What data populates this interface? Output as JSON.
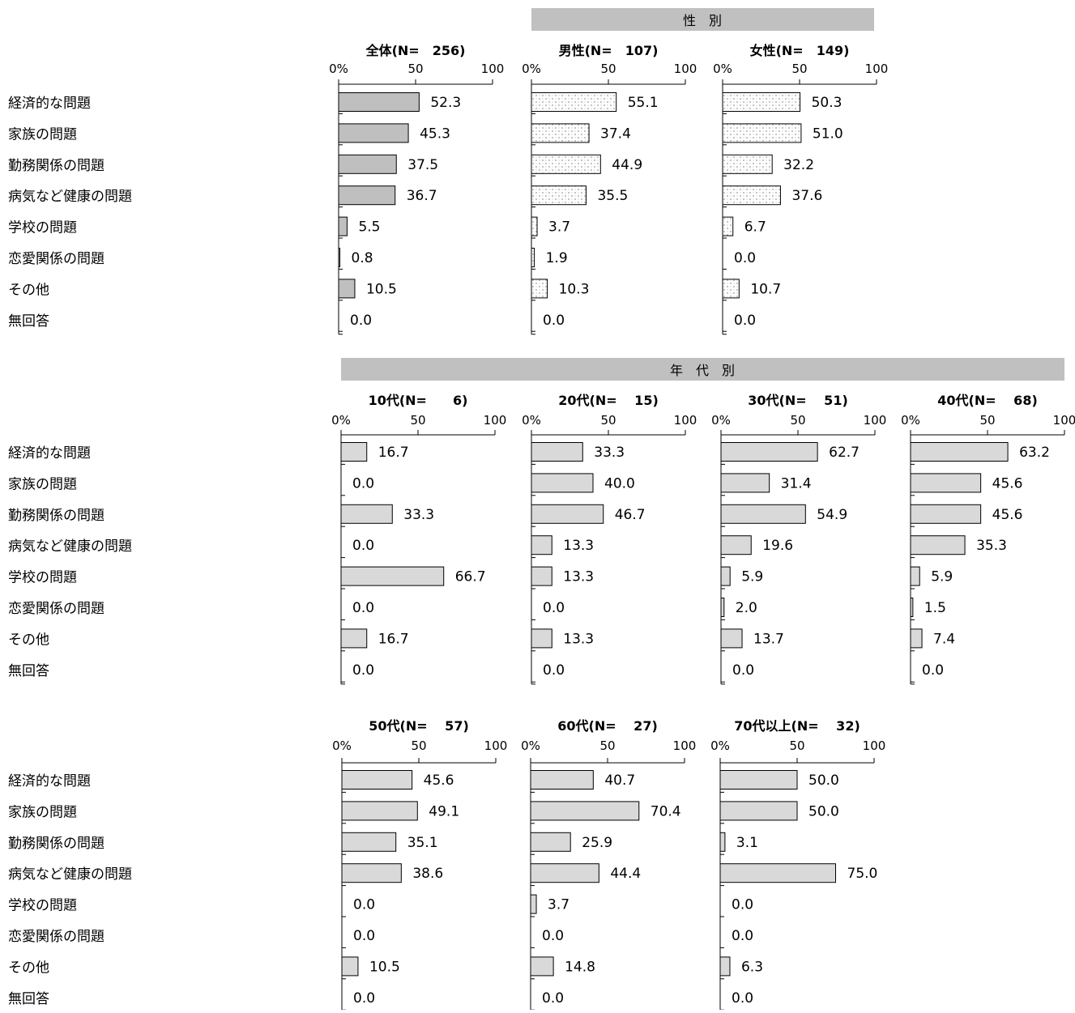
{
  "categories": [
    "経済的な問題",
    "家族の問題",
    "勤務関係の問題",
    "病気など健康の問題",
    "学校の問題",
    "恋愛関係の問題",
    "その他",
    "無回答"
  ],
  "group_headers": {
    "gender": "性　別",
    "age": "年　代　別"
  },
  "axis_ticks": [
    "0%",
    "50",
    "100"
  ],
  "colors": {
    "bar_total": "#bfbfbf",
    "bar_age": "#d9d9d9",
    "bar_border": "#000000",
    "header_bg": "#c0c0c0",
    "pattern_dot": "#999999"
  },
  "chart_data": [
    {
      "type": "bar",
      "orientation": "horizontal",
      "title": "全体(N=　256)",
      "style": "solid-gray",
      "xlim": [
        0,
        100
      ],
      "categories": [
        "経済的な問題",
        "家族の問題",
        "勤務関係の問題",
        "病気など健康の問題",
        "学校の問題",
        "恋愛関係の問題",
        "その他",
        "無回答"
      ],
      "values": [
        52.3,
        45.3,
        37.5,
        36.7,
        5.5,
        0.8,
        10.5,
        0.0
      ],
      "labels": [
        "52.3",
        "45.3",
        "37.5",
        "36.7",
        "5.5",
        "0.8",
        "10.5",
        "0.0"
      ]
    },
    {
      "type": "bar",
      "orientation": "horizontal",
      "title": "男性(N=　107)",
      "style": "dotted-pattern",
      "xlim": [
        0,
        100
      ],
      "categories": [
        "経済的な問題",
        "家族の問題",
        "勤務関係の問題",
        "病気など健康の問題",
        "学校の問題",
        "恋愛関係の問題",
        "その他",
        "無回答"
      ],
      "values": [
        55.1,
        37.4,
        44.9,
        35.5,
        3.7,
        1.9,
        10.3,
        0.0
      ],
      "labels": [
        "55.1",
        "37.4",
        "44.9",
        "35.5",
        "3.7",
        "1.9",
        "10.3",
        "0.0"
      ]
    },
    {
      "type": "bar",
      "orientation": "horizontal",
      "title": "女性(N=　149)",
      "style": "dotted-pattern",
      "xlim": [
        0,
        100
      ],
      "categories": [
        "経済的な問題",
        "家族の問題",
        "勤務関係の問題",
        "病気など健康の問題",
        "学校の問題",
        "恋愛関係の問題",
        "その他",
        "無回答"
      ],
      "values": [
        50.3,
        51.0,
        32.2,
        37.6,
        6.7,
        0.0,
        10.7,
        0.0
      ],
      "labels": [
        "50.3",
        "51.0",
        "32.2",
        "37.6",
        "6.7",
        "0.0",
        "10.7",
        "0.0"
      ]
    },
    {
      "type": "bar",
      "orientation": "horizontal",
      "title": "10代(N=　　6)",
      "style": "light-gray",
      "xlim": [
        0,
        100
      ],
      "categories": [
        "経済的な問題",
        "家族の問題",
        "勤務関係の問題",
        "病気など健康の問題",
        "学校の問題",
        "恋愛関係の問題",
        "その他",
        "無回答"
      ],
      "values": [
        16.7,
        0.0,
        33.3,
        0.0,
        66.7,
        0.0,
        16.7,
        0.0
      ],
      "labels": [
        "16.7",
        "0.0",
        "33.3",
        "0.0",
        "66.7",
        "0.0",
        "16.7",
        "0.0"
      ]
    },
    {
      "type": "bar",
      "orientation": "horizontal",
      "title": "20代(N=　 15)",
      "style": "light-gray",
      "xlim": [
        0,
        100
      ],
      "categories": [
        "経済的な問題",
        "家族の問題",
        "勤務関係の問題",
        "病気など健康の問題",
        "学校の問題",
        "恋愛関係の問題",
        "その他",
        "無回答"
      ],
      "values": [
        33.3,
        40.0,
        46.7,
        13.3,
        13.3,
        0.0,
        13.3,
        0.0
      ],
      "labels": [
        "33.3",
        "40.0",
        "46.7",
        "13.3",
        "13.3",
        "0.0",
        "13.3",
        "0.0"
      ]
    },
    {
      "type": "bar",
      "orientation": "horizontal",
      "title": "30代(N=　 51)",
      "style": "light-gray",
      "xlim": [
        0,
        100
      ],
      "categories": [
        "経済的な問題",
        "家族の問題",
        "勤務関係の問題",
        "病気など健康の問題",
        "学校の問題",
        "恋愛関係の問題",
        "その他",
        "無回答"
      ],
      "values": [
        62.7,
        31.4,
        54.9,
        19.6,
        5.9,
        2.0,
        13.7,
        0.0
      ],
      "labels": [
        "62.7",
        "31.4",
        "54.9",
        "19.6",
        "5.9",
        "2.0",
        "13.7",
        "0.0"
      ]
    },
    {
      "type": "bar",
      "orientation": "horizontal",
      "title": "40代(N=　 68)",
      "style": "light-gray",
      "xlim": [
        0,
        100
      ],
      "categories": [
        "経済的な問題",
        "家族の問題",
        "勤務関係の問題",
        "病気など健康の問題",
        "学校の問題",
        "恋愛関係の問題",
        "その他",
        "無回答"
      ],
      "values": [
        63.2,
        45.6,
        45.6,
        35.3,
        5.9,
        1.5,
        7.4,
        0.0
      ],
      "labels": [
        "63.2",
        "45.6",
        "45.6",
        "35.3",
        "5.9",
        "1.5",
        "7.4",
        "0.0"
      ]
    },
    {
      "type": "bar",
      "orientation": "horizontal",
      "title": "50代(N=　 57)",
      "style": "light-gray",
      "xlim": [
        0,
        100
      ],
      "categories": [
        "経済的な問題",
        "家族の問題",
        "勤務関係の問題",
        "病気など健康の問題",
        "学校の問題",
        "恋愛関係の問題",
        "その他",
        "無回答"
      ],
      "values": [
        45.6,
        49.1,
        35.1,
        38.6,
        0.0,
        0.0,
        10.5,
        0.0
      ],
      "labels": [
        "45.6",
        "49.1",
        "35.1",
        "38.6",
        "0.0",
        "0.0",
        "10.5",
        "0.0"
      ]
    },
    {
      "type": "bar",
      "orientation": "horizontal",
      "title": "60代(N=　 27)",
      "style": "light-gray",
      "xlim": [
        0,
        100
      ],
      "categories": [
        "経済的な問題",
        "家族の問題",
        "勤務関係の問題",
        "病気など健康の問題",
        "学校の問題",
        "恋愛関係の問題",
        "その他",
        "無回答"
      ],
      "values": [
        40.7,
        70.4,
        25.9,
        44.4,
        3.7,
        0.0,
        14.8,
        0.0
      ],
      "labels": [
        "40.7",
        "70.4",
        "25.9",
        "44.4",
        "3.7",
        "0.0",
        "14.8",
        "0.0"
      ]
    },
    {
      "type": "bar",
      "orientation": "horizontal",
      "title": "70代以上(N=　 32)",
      "style": "light-gray",
      "xlim": [
        0,
        100
      ],
      "categories": [
        "経済的な問題",
        "家族の問題",
        "勤務関係の問題",
        "病気など健康の問題",
        "学校の問題",
        "恋愛関係の問題",
        "その他",
        "無回答"
      ],
      "values": [
        50.0,
        50.0,
        3.1,
        75.0,
        0.0,
        0.0,
        6.3,
        0.0
      ],
      "labels": [
        "50.0",
        "50.0",
        "3.1",
        "75.0",
        "0.0",
        "0.0",
        "6.3",
        "0.0"
      ]
    }
  ]
}
